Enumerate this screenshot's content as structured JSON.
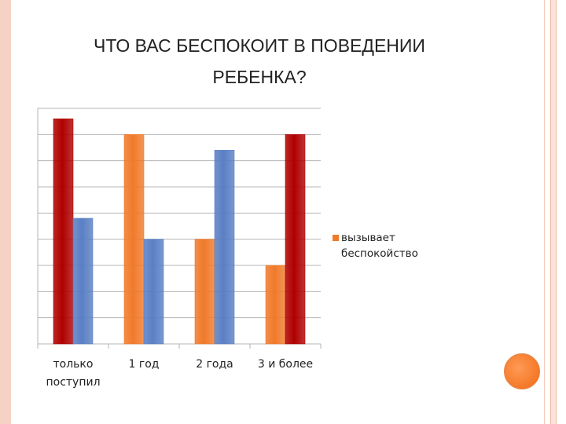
{
  "slide": {
    "title_line1": "ЧТО ВАС БЕСПОКОИТ В ПОВЕДЕНИИ",
    "title_line2": "РЕБЕНКА?"
  },
  "chart_data": {
    "type": "bar",
    "title": "",
    "categories": [
      "только поступил",
      "1 год",
      "2 года",
      "3 и более"
    ],
    "category_lines": [
      [
        "только",
        "поступил"
      ],
      [
        "1 год"
      ],
      [
        "2 года"
      ],
      [
        "3 и более"
      ]
    ],
    "ylim": [
      0,
      9
    ],
    "grid": true,
    "legend_position": "right",
    "legend_text_lines": [
      "вызывает",
      "беспокойство"
    ],
    "bars": [
      {
        "category": 0,
        "slot": 0,
        "value": 8.6,
        "color": "#b00000"
      },
      {
        "category": 0,
        "slot": 1,
        "value": 4.8,
        "color": "#5a7fc4"
      },
      {
        "category": 1,
        "slot": 0,
        "value": 8.0,
        "color": "#f07a2a"
      },
      {
        "category": 1,
        "slot": 1,
        "value": 4.0,
        "color": "#5a7fc4"
      },
      {
        "category": 2,
        "slot": 0,
        "value": 4.0,
        "color": "#f07a2a"
      },
      {
        "category": 2,
        "slot": 1,
        "value": 7.4,
        "color": "#5a7fc4"
      },
      {
        "category": 3,
        "slot": 0,
        "value": 3.0,
        "color": "#f07a2a"
      },
      {
        "category": 3,
        "slot": 1,
        "value": 8.0,
        "color": "#b00000"
      }
    ],
    "legend_color": "#f07a2a"
  }
}
